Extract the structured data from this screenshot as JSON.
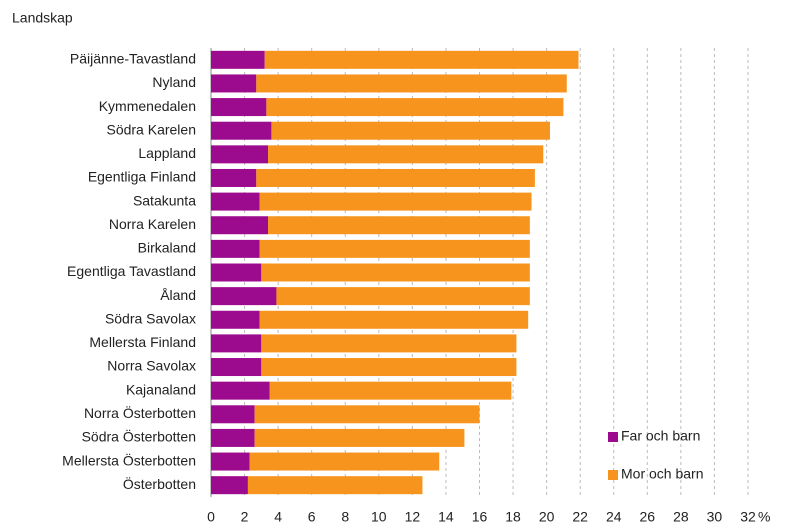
{
  "chart_data": {
    "type": "stacked_barh",
    "axis_label": "Landskap",
    "unit": "%",
    "categories": [
      "Päijänne-Tavastland",
      "Nyland",
      "Kymmenedalen",
      "Södra Karelen",
      "Lappland",
      "Egentliga Finland",
      "Satakunta",
      "Norra Karelen",
      "Birkaland",
      "Egentliga Tavastland",
      "Åland",
      "Södra Savolax",
      "Mellersta Finland",
      "Norra Savolax",
      "Kajanaland",
      "Norra Österbotten",
      "Södra Österbotten",
      "Mellersta Österbotten",
      "Österbotten"
    ],
    "series": [
      {
        "name": "Far och barn",
        "color": "#9c0a8d",
        "values": [
          3.2,
          2.7,
          3.3,
          3.6,
          3.4,
          2.7,
          2.9,
          3.4,
          2.9,
          3.0,
          3.9,
          2.9,
          3.0,
          3.0,
          3.5,
          2.6,
          2.6,
          2.3,
          2.2
        ]
      },
      {
        "name": "Mor och barn",
        "color": "#f7941d",
        "values": [
          18.7,
          18.5,
          17.7,
          16.6,
          16.4,
          16.6,
          16.2,
          15.6,
          16.1,
          16.0,
          15.1,
          16.0,
          15.2,
          15.2,
          14.4,
          13.4,
          12.5,
          11.3,
          10.4
        ]
      }
    ],
    "xlim": [
      0,
      32
    ],
    "xticks": [
      0,
      2,
      4,
      6,
      8,
      10,
      12,
      14,
      16,
      18,
      20,
      22,
      24,
      26,
      28,
      30,
      32
    ],
    "grid": true,
    "legend": "lower right"
  }
}
